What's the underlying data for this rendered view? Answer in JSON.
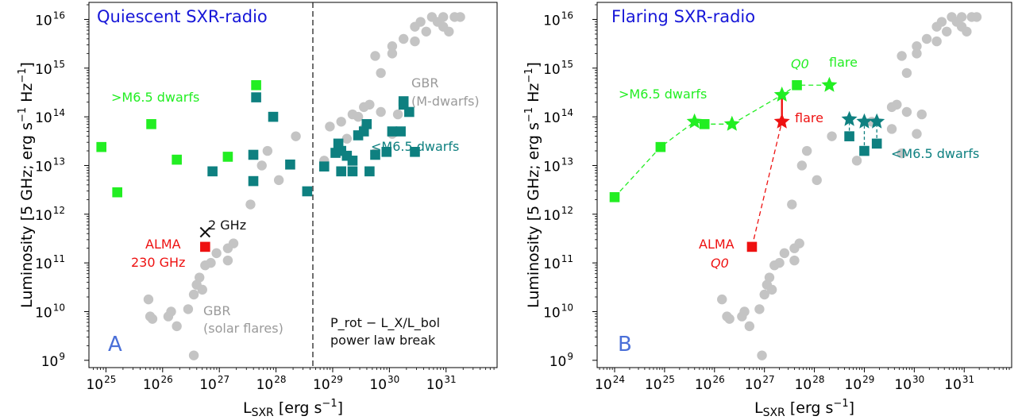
{
  "chart_data": [
    {
      "type": "scatter",
      "title": "Quiescent SXR-radio",
      "panel_letter": "A",
      "xlabel": "L_SXR [erg s^-1]",
      "ylabel": "Luminosity [5 GHz; erg s^-1 Hz^-1]",
      "x_scale": "log",
      "y_scale": "log",
      "xlim_log10": [
        24.7,
        31.9
      ],
      "ylim_log10": [
        8.85,
        16.35
      ],
      "x_ticks_log10": [
        25,
        26,
        27,
        28,
        29,
        30,
        31
      ],
      "y_ticks_log10": [
        9,
        10,
        11,
        12,
        13,
        14,
        15,
        16
      ],
      "grid": false,
      "colors": {
        "bright_green": "#22ee22",
        "teal": "#0e8080",
        "gray": "#c4c4c4",
        "red": "#ee1111",
        "blue_title": "#1616d8"
      },
      "series": [
        {
          "name": "GBR (M-dwarfs)",
          "marker": "circle",
          "color": "#c4c4c4",
          "points": [
            [
              27.85,
              13.3
            ],
            [
              28.05,
              12.7
            ],
            [
              27.75,
              13.0
            ],
            [
              27.55,
              12.2
            ],
            [
              28.35,
              13.6
            ],
            [
              28.85,
              13.1
            ],
            [
              29.15,
              13.9
            ],
            [
              29.35,
              14.05
            ],
            [
              29.55,
              14.2
            ],
            [
              29.45,
              14.0
            ],
            [
              29.25,
              13.55
            ],
            [
              28.95,
              13.8
            ],
            [
              29.75,
              13.25
            ],
            [
              30.05,
              13.65
            ],
            [
              30.15,
              14.05
            ],
            [
              29.85,
              14.9
            ],
            [
              29.75,
              15.25
            ],
            [
              30.05,
              15.3
            ],
            [
              30.25,
              15.6
            ],
            [
              30.45,
              15.85
            ],
            [
              30.05,
              15.45
            ],
            [
              30.55,
              15.95
            ],
            [
              30.45,
              15.55
            ],
            [
              30.75,
              16.05
            ],
            [
              30.95,
              16.05
            ],
            [
              30.65,
              15.75
            ],
            [
              30.85,
              15.95
            ],
            [
              31.05,
              15.75
            ],
            [
              30.95,
              15.85
            ],
            [
              31.15,
              16.05
            ],
            [
              31.25,
              16.05
            ],
            [
              29.65,
              14.25
            ],
            [
              29.55,
              13.75
            ],
            [
              29.85,
              14.1
            ]
          ]
        },
        {
          "name": "GBR (solar flares)",
          "marker": "circle",
          "color": "#c4c4c4",
          "points": [
            [
              25.75,
              10.25
            ],
            [
              25.78,
              9.9
            ],
            [
              25.82,
              9.85
            ],
            [
              26.1,
              9.9
            ],
            [
              26.15,
              10.0
            ],
            [
              26.25,
              9.7
            ],
            [
              26.45,
              10.05
            ],
            [
              26.55,
              9.1
            ],
            [
              26.55,
              10.35
            ],
            [
              26.6,
              10.55
            ],
            [
              26.65,
              10.7
            ],
            [
              26.7,
              10.45
            ],
            [
              26.75,
              10.95
            ],
            [
              26.85,
              11.0
            ],
            [
              26.95,
              11.2
            ],
            [
              27.15,
              11.3
            ],
            [
              27.25,
              11.4
            ],
            [
              27.15,
              11.05
            ]
          ]
        },
        {
          "name": ">M6.5 dwarfs",
          "marker": "square",
          "color": "#22ee22",
          "points": [
            [
              24.92,
              13.38
            ],
            [
              25.2,
              12.45
            ],
            [
              25.8,
              13.85
            ],
            [
              26.25,
              13.12
            ],
            [
              27.15,
              13.18
            ],
            [
              27.65,
              14.65
            ]
          ]
        },
        {
          "name": "<M6.5 dwarfs",
          "marker": "square",
          "color": "#0e8080",
          "points": [
            [
              26.88,
              12.88
            ],
            [
              27.6,
              13.22
            ],
            [
              27.6,
              12.68
            ],
            [
              27.65,
              14.4
            ],
            [
              27.95,
              14.0
            ],
            [
              28.25,
              13.02
            ],
            [
              28.55,
              12.47
            ],
            [
              28.85,
              12.98
            ],
            [
              29.05,
              13.26
            ],
            [
              29.1,
              13.45
            ],
            [
              29.15,
              13.3
            ],
            [
              29.15,
              12.88
            ],
            [
              29.25,
              13.2
            ],
            [
              29.35,
              12.88
            ],
            [
              29.45,
              13.62
            ],
            [
              29.55,
              13.7
            ],
            [
              29.6,
              13.85
            ],
            [
              29.75,
              13.22
            ],
            [
              29.95,
              13.28
            ],
            [
              30.05,
              13.7
            ],
            [
              30.2,
              13.7
            ],
            [
              30.25,
              14.32
            ],
            [
              30.25,
              14.25
            ],
            [
              30.35,
              14.1
            ],
            [
              30.45,
              13.28
            ],
            [
              29.65,
              12.88
            ],
            [
              29.35,
              13.1
            ]
          ]
        },
        {
          "name": "ALMA 230 GHz",
          "marker": "square",
          "color": "#ee1111",
          "points": [
            [
              26.75,
              11.33
            ]
          ]
        },
        {
          "name": "2 GHz",
          "marker": "x",
          "color": "#111111",
          "points": [
            [
              26.75,
              11.63
            ]
          ]
        }
      ],
      "vertical_line_log10": 28.65,
      "annotations": [
        {
          "id": "gt_m65",
          "text": ">M6.5 dwarfs"
        },
        {
          "id": "lt_m65",
          "text": "<M6.5 dwarfs"
        },
        {
          "id": "gbr_m_1",
          "text": "GBR"
        },
        {
          "id": "gbr_m_2",
          "text": "(M-dwarfs)"
        },
        {
          "id": "gbr_s_1",
          "text": "GBR"
        },
        {
          "id": "gbr_s_2",
          "text": "(solar flares)"
        },
        {
          "id": "two_ghz",
          "text": "2 GHz"
        },
        {
          "id": "alma_1",
          "text": "ALMA"
        },
        {
          "id": "alma_2",
          "text": "230 GHz"
        },
        {
          "id": "break_1",
          "text": "P_rot − L_X/L_bol"
        },
        {
          "id": "break_2",
          "text": "power law break"
        }
      ]
    },
    {
      "type": "scatter",
      "title": "Flaring SXR-radio",
      "panel_letter": "B",
      "xlabel": "L_SXR [erg s^-1]",
      "ylabel": "Luminosity [5 GHz; erg s^-1 Hz^-1]",
      "x_scale": "log",
      "y_scale": "log",
      "xlim_log10": [
        23.65,
        31.95
      ],
      "ylim_log10": [
        8.85,
        16.35
      ],
      "x_ticks_log10": [
        24,
        25,
        26,
        27,
        28,
        29,
        30,
        31
      ],
      "y_ticks_log10": [
        9,
        10,
        11,
        12,
        13,
        14,
        15,
        16
      ],
      "grid": false,
      "series": [
        {
          "name": "GBR",
          "marker": "circle",
          "color": "#c4c4c4",
          "points": [
            [
              29.85,
              14.9
            ],
            [
              29.75,
              15.25
            ],
            [
              30.05,
              15.3
            ],
            [
              30.25,
              15.6
            ],
            [
              30.45,
              15.85
            ],
            [
              30.05,
              15.45
            ],
            [
              30.55,
              15.95
            ],
            [
              30.45,
              15.55
            ],
            [
              30.75,
              16.05
            ],
            [
              30.95,
              16.05
            ],
            [
              30.65,
              15.75
            ],
            [
              30.85,
              15.95
            ],
            [
              31.05,
              15.75
            ],
            [
              30.95,
              15.85
            ],
            [
              31.15,
              16.05
            ],
            [
              31.25,
              16.05
            ],
            [
              29.55,
              14.2
            ],
            [
              29.65,
              14.25
            ],
            [
              29.55,
              13.75
            ],
            [
              29.85,
              14.1
            ],
            [
              30.15,
              14.05
            ],
            [
              30.05,
              13.65
            ],
            [
              29.75,
              13.25
            ],
            [
              29.15,
              13.9
            ],
            [
              28.85,
              13.1
            ],
            [
              28.35,
              13.6
            ],
            [
              28.05,
              12.7
            ],
            [
              27.85,
              13.3
            ],
            [
              27.75,
              13.0
            ],
            [
              27.55,
              12.2
            ],
            [
              26.15,
              10.25
            ],
            [
              26.25,
              9.9
            ],
            [
              26.3,
              9.85
            ],
            [
              26.55,
              9.9
            ],
            [
              26.6,
              10.0
            ],
            [
              26.7,
              9.7
            ],
            [
              26.9,
              10.05
            ],
            [
              27.0,
              10.35
            ],
            [
              27.05,
              10.55
            ],
            [
              27.1,
              10.7
            ],
            [
              27.15,
              10.45
            ],
            [
              27.2,
              10.95
            ],
            [
              27.3,
              11.0
            ],
            [
              27.4,
              11.2
            ],
            [
              27.6,
              11.3
            ],
            [
              27.7,
              11.4
            ],
            [
              27.6,
              11.05
            ],
            [
              26.95,
              9.1
            ]
          ]
        },
        {
          "name": ">M6.5 dwarfs",
          "marker": "square",
          "color": "#22ee22",
          "connect": "dashed",
          "points": [
            [
              24.0,
              12.35
            ],
            [
              24.92,
              13.38
            ],
            [
              25.8,
              13.85
            ],
            [
              27.65,
              14.65
            ]
          ]
        },
        {
          "name": ">M6.5 flares",
          "marker": "star",
          "color": "#22ee22",
          "connect": "dashed",
          "points": [
            [
              25.6,
              13.9
            ],
            [
              26.35,
              13.85
            ],
            [
              27.35,
              14.45
            ],
            [
              28.3,
              14.65
            ]
          ]
        },
        {
          "name": "<M6.5 dwarfs",
          "marker": "square",
          "color": "#0e8080",
          "points": [
            [
              28.7,
              13.6
            ],
            [
              29.0,
              13.3
            ],
            [
              29.25,
              13.45
            ]
          ]
        },
        {
          "name": "<M6.5 flares",
          "marker": "star",
          "color": "#0e8080",
          "points": [
            [
              28.7,
              13.95
            ],
            [
              29.0,
              13.9
            ],
            [
              29.25,
              13.9
            ]
          ]
        },
        {
          "name": "ALMA Q0",
          "marker": "square",
          "color": "#ee1111",
          "points": [
            [
              26.75,
              11.33
            ]
          ]
        },
        {
          "name": "ALMA flare",
          "marker": "star",
          "color": "#ee1111",
          "points": [
            [
              27.35,
              13.9
            ]
          ]
        }
      ],
      "annotations": [
        {
          "id": "gt_m65",
          "text": ">M6.5 dwarfs"
        },
        {
          "id": "lt_m65",
          "text": "<M6.5 dwarfs"
        },
        {
          "id": "q0",
          "text": "Q0"
        },
        {
          "id": "flare_green",
          "text": "flare"
        },
        {
          "id": "flare_red",
          "text": "flare"
        },
        {
          "id": "alma_1",
          "text": "ALMA"
        },
        {
          "id": "alma_2",
          "text": "Q0"
        }
      ]
    }
  ]
}
